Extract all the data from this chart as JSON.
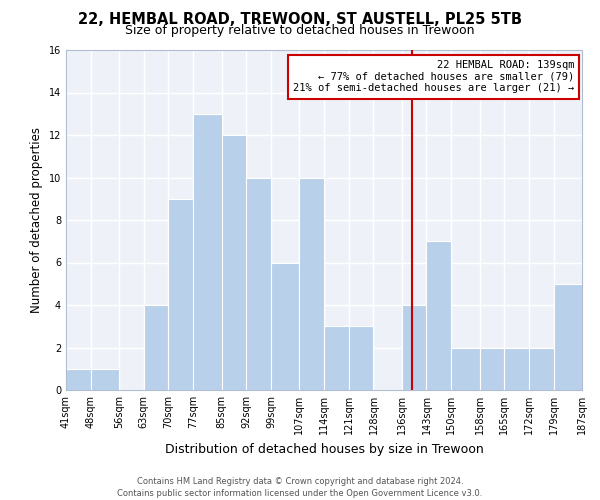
{
  "title": "22, HEMBAL ROAD, TREWOON, ST AUSTELL, PL25 5TB",
  "subtitle": "Size of property relative to detached houses in Trewoon",
  "xlabel": "Distribution of detached houses by size in Trewoon",
  "ylabel": "Number of detached properties",
  "bin_edges": [
    41,
    48,
    56,
    63,
    70,
    77,
    85,
    92,
    99,
    107,
    114,
    121,
    128,
    136,
    143,
    150,
    158,
    165,
    172,
    179,
    187
  ],
  "bin_labels": [
    "41sqm",
    "48sqm",
    "56sqm",
    "63sqm",
    "70sqm",
    "77sqm",
    "85sqm",
    "92sqm",
    "99sqm",
    "107sqm",
    "114sqm",
    "121sqm",
    "128sqm",
    "136sqm",
    "143sqm",
    "150sqm",
    "158sqm",
    "165sqm",
    "172sqm",
    "179sqm",
    "187sqm"
  ],
  "counts": [
    1,
    1,
    0,
    4,
    9,
    13,
    12,
    10,
    6,
    10,
    3,
    3,
    0,
    4,
    7,
    2,
    2,
    2,
    2,
    5
  ],
  "bar_color": "#b8d0ea",
  "grid_color": "#d0d8e8",
  "vline_x": 139,
  "vline_color": "#cc0000",
  "annotation_title": "22 HEMBAL ROAD: 139sqm",
  "annotation_line1": "← 77% of detached houses are smaller (79)",
  "annotation_line2": "21% of semi-detached houses are larger (21) →",
  "ylim": [
    0,
    16
  ],
  "yticks": [
    0,
    2,
    4,
    6,
    8,
    10,
    12,
    14,
    16
  ],
  "footer_line1": "Contains HM Land Registry data © Crown copyright and database right 2024.",
  "footer_line2": "Contains public sector information licensed under the Open Government Licence v3.0.",
  "title_fontsize": 10.5,
  "subtitle_fontsize": 9,
  "ylabel_fontsize": 8.5,
  "xlabel_fontsize": 9,
  "tick_fontsize": 7,
  "footer_fontsize": 6,
  "annotation_fontsize": 7.5,
  "background_color": "#eef2f8"
}
